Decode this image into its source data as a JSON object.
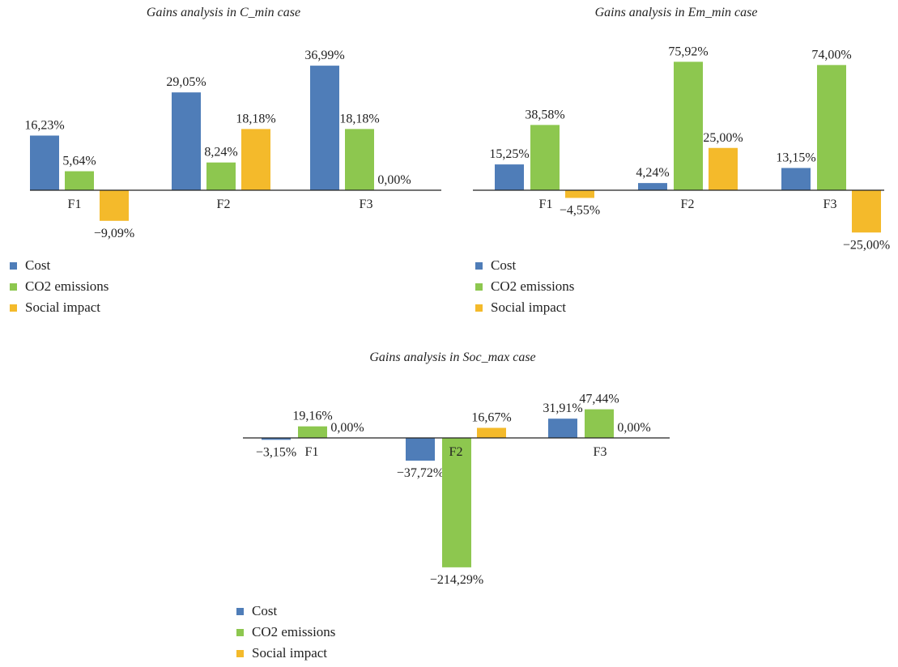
{
  "colors": {
    "Cost": "#4F7DB8",
    "CO2 emissions": "#8DC74F",
    "Social impact": "#F4BA2B"
  },
  "chart_data": [
    {
      "type": "bar",
      "title": "Gains analysis in C_min case",
      "categories": [
        "F1",
        "F2",
        "F3"
      ],
      "series": [
        {
          "name": "Cost",
          "values": [
            16.23,
            29.05,
            36.99
          ],
          "labels": [
            "16,23%",
            "29,05%",
            "36,99%"
          ]
        },
        {
          "name": "CO2 emissions",
          "values": [
            5.64,
            8.24,
            18.18
          ],
          "labels": [
            "5,64%",
            "8,24%",
            "18,18%"
          ]
        },
        {
          "name": "Social impact",
          "values": [
            -9.09,
            18.18,
            0.0
          ],
          "labels": [
            "−9,09%",
            "18,18%",
            "0,00%"
          ]
        }
      ],
      "legend": "bottom-left",
      "grid": false
    },
    {
      "type": "bar",
      "title": "Gains analysis in Em_min case",
      "categories": [
        "F1",
        "F2",
        "F3"
      ],
      "series": [
        {
          "name": "Cost",
          "values": [
            15.25,
            4.24,
            13.15
          ],
          "labels": [
            "15,25%",
            "4,24%",
            "13,15%"
          ]
        },
        {
          "name": "CO2 emissions",
          "values": [
            38.58,
            75.92,
            74.0
          ],
          "labels": [
            "38,58%",
            "75,92%",
            "74,00%"
          ]
        },
        {
          "name": "Social impact",
          "values": [
            -4.55,
            25.0,
            -25.0
          ],
          "labels": [
            "−4,55%",
            "25,00%",
            "−25,00%"
          ]
        }
      ],
      "legend": "bottom-left",
      "grid": false
    },
    {
      "type": "bar",
      "title": "Gains analysis in Soc_max case",
      "categories": [
        "F1",
        "F2",
        "F3"
      ],
      "series": [
        {
          "name": "Cost",
          "values": [
            -3.15,
            -37.72,
            31.91
          ],
          "labels": [
            "−3,15%",
            "−37,72%",
            "31,91%"
          ]
        },
        {
          "name": "CO2 emissions",
          "values": [
            19.16,
            -214.29,
            47.44
          ],
          "labels": [
            "19,16%",
            "−214,29%",
            "47,44%"
          ]
        },
        {
          "name": "Social impact",
          "values": [
            0.0,
            16.67,
            0.0
          ],
          "labels": [
            "0,00%",
            "16,67%",
            "0,00%"
          ]
        }
      ],
      "legend": "bottom-left",
      "grid": false
    }
  ]
}
